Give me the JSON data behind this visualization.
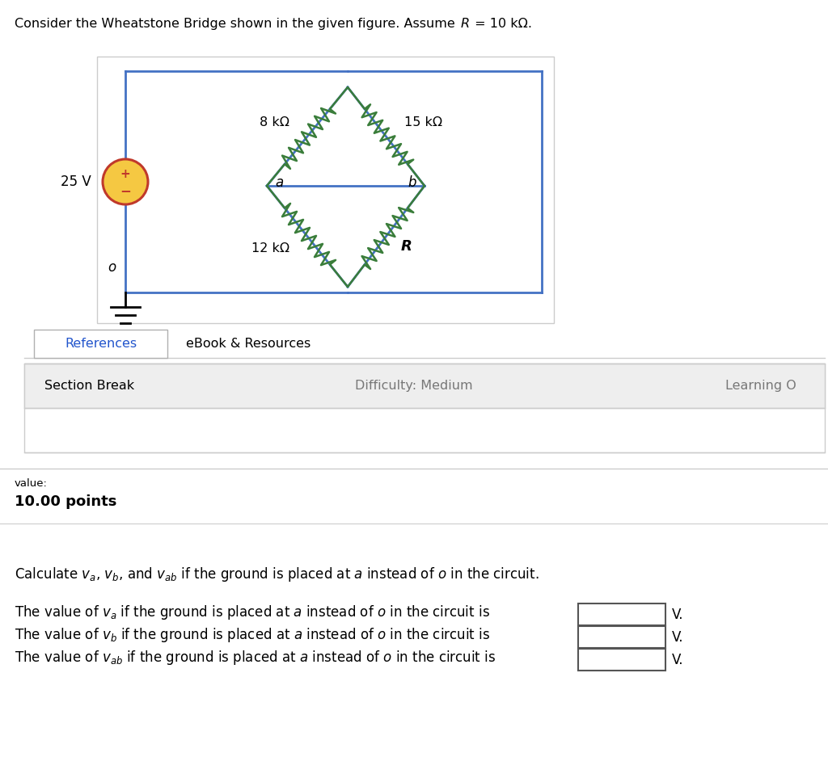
{
  "wire_color": "#4472C4",
  "resistor_color": "#3a7d3a",
  "bg_color": "#ffffff",
  "ref_tab_color": "#2255cc",
  "section_bg": "#f0f0f0",
  "title": "Consider the Wheatstone Bridge shown in the given figure. Assume ",
  "title_R": "R",
  "title_eq": " = 10 kΩ.",
  "voltage_label": "25 V",
  "R1_label": "8 kΩ",
  "R2_label": "15 kΩ",
  "R3_label": "12 kΩ",
  "R4_label": "R",
  "node_a": "a",
  "node_b": "b",
  "node_o": "o",
  "ref_text": "References",
  "ebook_text": "eBook & Resources",
  "section_text": "Section Break",
  "difficulty_text": "Difficulty: Medium",
  "learning_text": "Learning O",
  "value_text": "value:",
  "points_text": "10.00 points",
  "calc_text_pre": "Calculate ",
  "calc_text_post": " if the ground is placed at ",
  "calc_text_end": " instead of ",
  "calc_text_fin": " in the circuit.",
  "line_pre": "The value of ",
  "line_post": " if the ground is placed at ",
  "line_end": " instead of ",
  "line_fin": " in the circuit is",
  "V_label": "V."
}
